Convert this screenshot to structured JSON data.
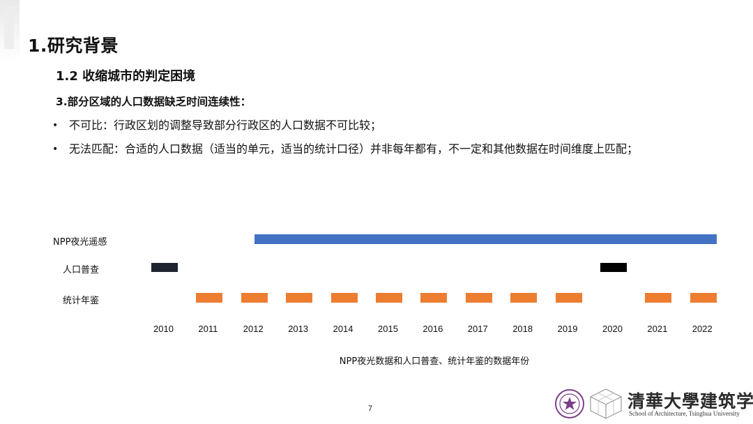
{
  "heading": "1.研究背景",
  "subheading": "1.2 收缩城市的判定困境",
  "point_title": "3.部分区域的人口数据缺乏时间连续性：",
  "bullets": [
    "不可比：行政区划的调整导致部分行政区的人口数据不可比较；",
    "无法匹配：合适的人口数据（适当的单元，适当的统计口径）并非每年都有，不一定和其他数据在时间维度上匹配；"
  ],
  "timeline": {
    "years": [
      "2010",
      "2011",
      "2012",
      "2013",
      "2014",
      "2015",
      "2016",
      "2017",
      "2018",
      "2019",
      "2020",
      "2021",
      "2022"
    ],
    "rows": [
      {
        "label": "NPP夜光遥感",
        "color": "#4472c4",
        "continuous": true,
        "from": "2012.25",
        "to": "2022"
      },
      {
        "label": "人口普查",
        "color": "#1f2430",
        "years": [
          "2010",
          "2020"
        ]
      },
      {
        "label": "统计年鉴",
        "color": "#ed7d31",
        "years": [
          "2011",
          "2012",
          "2013",
          "2014",
          "2015",
          "2016",
          "2017",
          "2018",
          "2019",
          "2021",
          "2022"
        ]
      }
    ],
    "caption": "NPP夜光数据和人口普查、统计年鉴的数据年份"
  },
  "page_number": "7",
  "footer": {
    "school_cn": "清華大學建筑学院",
    "school_en": "School of Architecture, Tsinghua University"
  }
}
